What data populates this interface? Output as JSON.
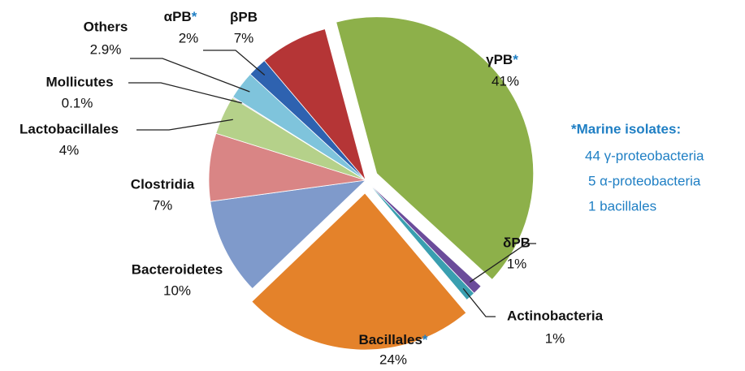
{
  "chart_data": {
    "type": "pie",
    "categories": [
      "γPB*",
      "δPB",
      "Actinobacteria",
      "Bacillales*",
      "Bacteroidetes",
      "Clostridia",
      "Lactobacillales",
      "Mollicutes",
      "Others",
      "αPB*",
      "βPB"
    ],
    "values": [
      41,
      1,
      1,
      24,
      10,
      7,
      4,
      0.1,
      2.9,
      2,
      7
    ],
    "value_labels": [
      "41%",
      "1%",
      "1%",
      "24%",
      "10%",
      "7%",
      "4%",
      "0.1%",
      "2.9%",
      "2%",
      "7%"
    ],
    "colors": [
      "#8db04a",
      "#6b4c9a",
      "#3a9fb0",
      "#e4822a",
      "#7f9acb",
      "#d98585",
      "#b5d18a",
      "#b39fcf",
      "#7fc4dc",
      "#2e62b0",
      "#b53536"
    ],
    "annotation": {
      "title": "*Marine isolates:",
      "lines": [
        "44 γ-proteobacteria",
        "5  α-proteobacteria",
        "1  bacillales"
      ]
    }
  }
}
